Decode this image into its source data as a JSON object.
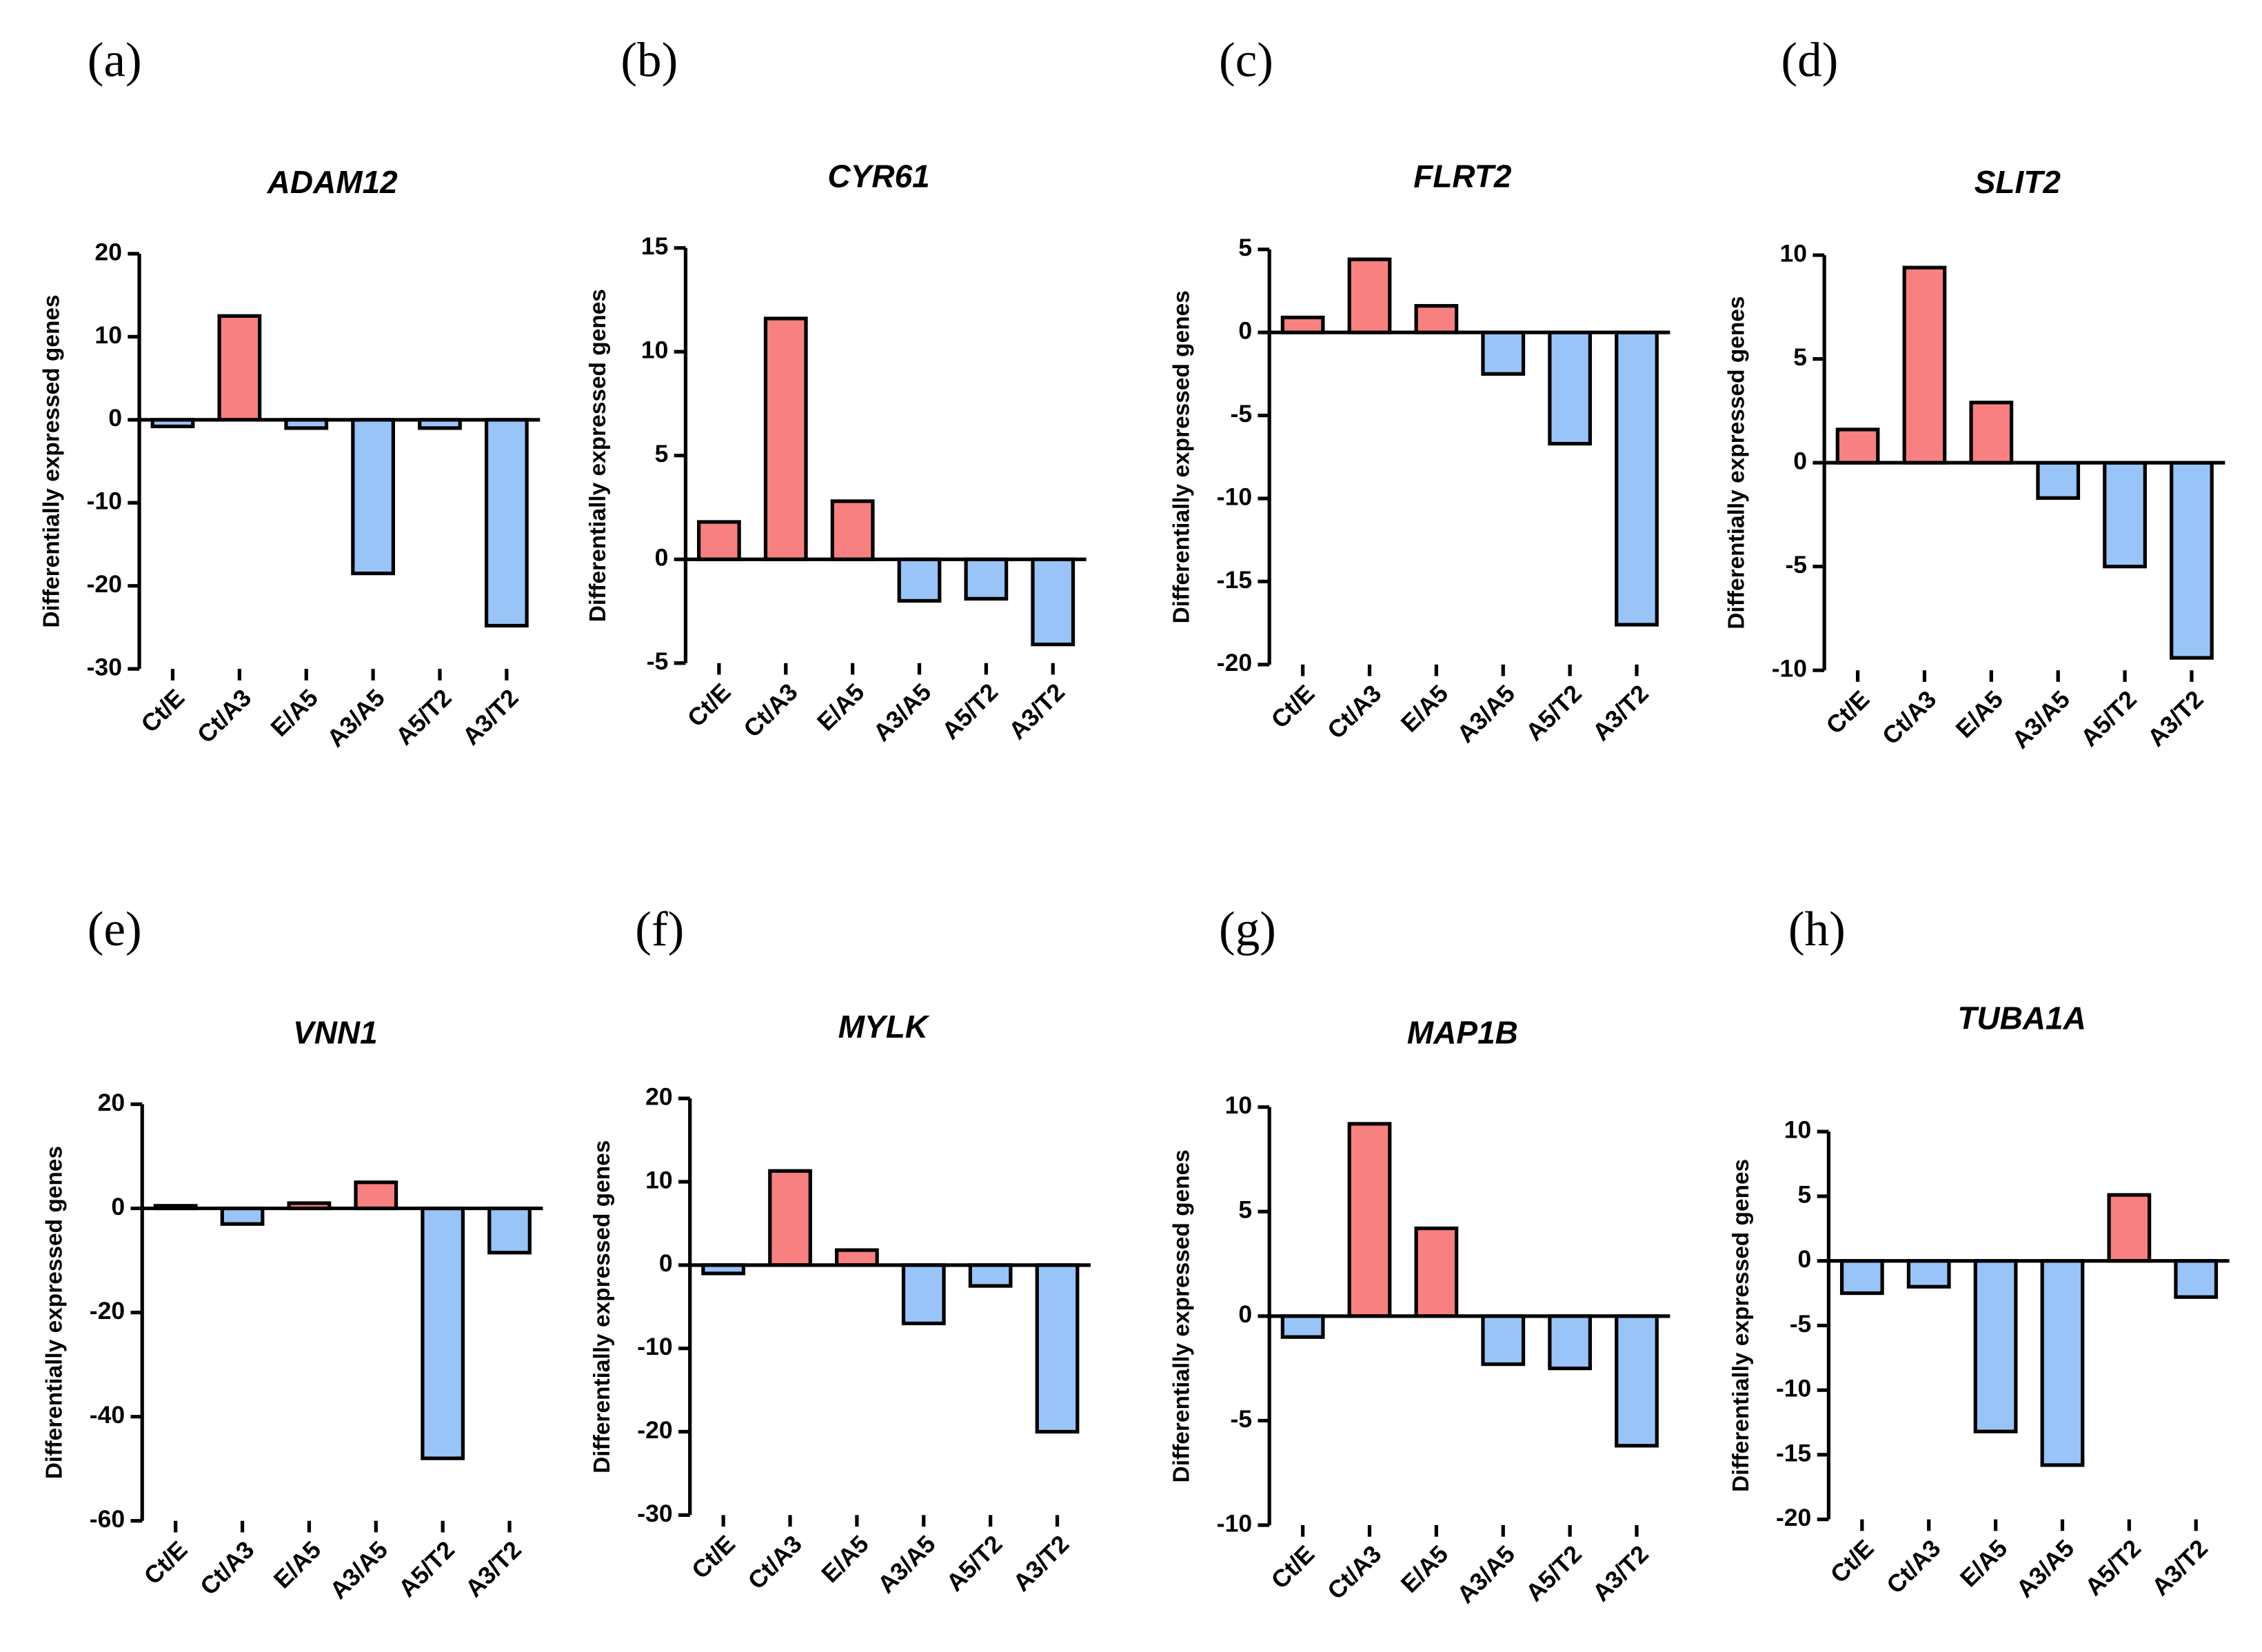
{
  "chart_data": [
    {
      "type": "bar",
      "panel": "(a)",
      "title": "ADAM12",
      "y_label": "Differentially expressed genes",
      "categories": [
        "Ct/E",
        "Ct/A3",
        "E/A5",
        "A3/A5",
        "A5/T2",
        "A3/T2"
      ],
      "values": [
        -0.8,
        12.5,
        -1,
        -18.5,
        -1,
        -24.8
      ],
      "color_positive": "#f88080",
      "color_negative": "#99c4f8",
      "ylim": [
        -30,
        20
      ],
      "yticks": [
        -30,
        -20,
        -10,
        0,
        10,
        20
      ]
    },
    {
      "type": "bar",
      "panel": "(b)",
      "title": "CYR61",
      "y_label": "Differentially expressed genes",
      "categories": [
        "Ct/E",
        "Ct/A3",
        "E/A5",
        "A3/A5",
        "A5/T2",
        "A3/T2"
      ],
      "values": [
        1.8,
        11.6,
        2.8,
        -2,
        -1.9,
        -4.1
      ],
      "color_positive": "#f88080",
      "color_negative": "#99c4f8",
      "ylim": [
        -5,
        15
      ],
      "yticks": [
        -5,
        0,
        5,
        10,
        15
      ]
    },
    {
      "type": "bar",
      "panel": "(c)",
      "title": "FLRT2",
      "y_label": "Differentially expressed genes",
      "categories": [
        "Ct/E",
        "Ct/A3",
        "E/A5",
        "A3/A5",
        "A5/T2",
        "A3/T2"
      ],
      "values": [
        0.9,
        4.4,
        1.6,
        -2.5,
        -6.7,
        -17.6
      ],
      "color_positive": "#f88080",
      "color_negative": "#99c4f8",
      "ylim": [
        -20,
        5
      ],
      "yticks": [
        -20,
        -15,
        -10,
        -5,
        0,
        5
      ]
    },
    {
      "type": "bar",
      "panel": "(d)",
      "title": "SLIT2",
      "y_label": "Differentially expressed genes",
      "categories": [
        "Ct/E",
        "Ct/A3",
        "E/A5",
        "A3/A5",
        "A5/T2",
        "A3/T2"
      ],
      "values": [
        1.6,
        9.4,
        2.9,
        -1.7,
        -5,
        -9.4
      ],
      "color_positive": "#f88080",
      "color_negative": "#99c4f8",
      "ylim": [
        -10,
        10
      ],
      "yticks": [
        -10,
        -5,
        0,
        5,
        10
      ]
    },
    {
      "type": "bar",
      "panel": "(e)",
      "title": "VNN1",
      "y_label": "Differentially expressed genes",
      "categories": [
        "Ct/E",
        "Ct/A3",
        "E/A5",
        "A3/A5",
        "A5/T2",
        "A3/T2"
      ],
      "values": [
        0.5,
        -3,
        1,
        5,
        -48,
        -8.5
      ],
      "color_positive": "#f88080",
      "color_negative": "#99c4f8",
      "ylim": [
        -60,
        20
      ],
      "yticks": [
        -60,
        -40,
        -20,
        0,
        20
      ]
    },
    {
      "type": "bar",
      "panel": "(f)",
      "title": "MYLK",
      "y_label": "Differentially expressed genes",
      "categories": [
        "Ct/E",
        "Ct/A3",
        "E/A5",
        "A3/A5",
        "A5/T2",
        "A3/T2"
      ],
      "values": [
        -1,
        11.3,
        1.8,
        -7,
        -2.5,
        -20
      ],
      "color_positive": "#f88080",
      "color_negative": "#99c4f8",
      "ylim": [
        -30,
        20
      ],
      "yticks": [
        -30,
        -20,
        -10,
        0,
        10,
        20
      ]
    },
    {
      "type": "bar",
      "panel": "(g)",
      "title": "MAP1B",
      "y_label": "Differentially expressed genes",
      "categories": [
        "Ct/E",
        "Ct/A3",
        "E/A5",
        "A3/A5",
        "A5/T2",
        "A3/T2"
      ],
      "values": [
        -1,
        9.2,
        4.2,
        -2.3,
        -2.5,
        -6.2
      ],
      "color_positive": "#f88080",
      "color_negative": "#99c4f8",
      "ylim": [
        -10,
        10
      ],
      "yticks": [
        -10,
        -5,
        0,
        5,
        10
      ]
    },
    {
      "type": "bar",
      "panel": "(h)",
      "title": "TUBA1A",
      "y_label": "Differentially expressed genes",
      "categories": [
        "Ct/E",
        "Ct/A3",
        "E/A5",
        "A3/A5",
        "A5/T2",
        "A3/T2"
      ],
      "values": [
        -2.5,
        -2,
        -13.2,
        -15.8,
        5.1,
        -2.8
      ],
      "color_positive": "#f88080",
      "color_negative": "#99c4f8",
      "ylim": [
        -20,
        10
      ],
      "yticks": [
        -20,
        -15,
        -10,
        -5,
        0,
        5,
        10
      ]
    }
  ]
}
